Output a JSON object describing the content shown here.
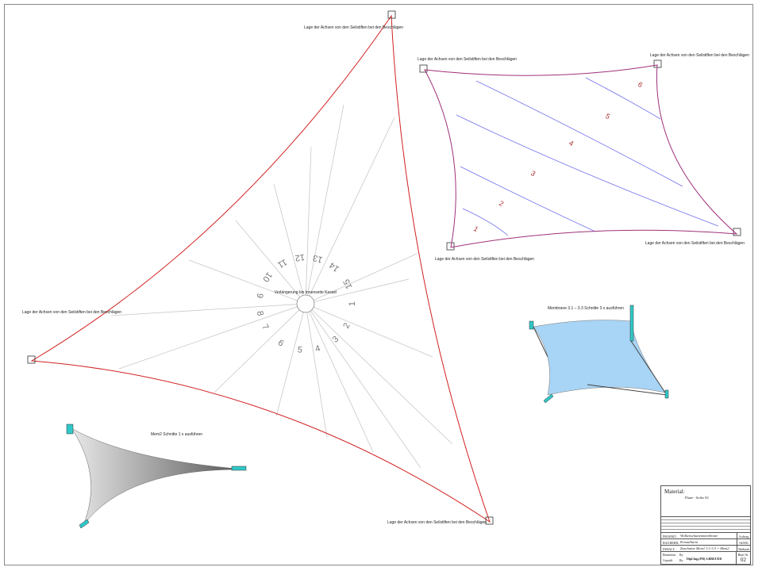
{
  "anchor_label": "Lage der Achsen von den Seilstiften bei den Beschlägen",
  "center_label": "Verlängerung bis Innenseite Kessel",
  "segments_main": [
    "1",
    "2",
    "3",
    "4",
    "5",
    "6",
    "7",
    "8",
    "9",
    "10",
    "11",
    "12",
    "13",
    "14",
    "15"
  ],
  "segments_quad": [
    "1",
    "2",
    "3",
    "4",
    "5",
    "6"
  ],
  "view_label_right": "Membrane 3.1 – 3.3 Schnitte 3 x ausführen",
  "view_label_left": "Mem2 Schnitte 1 x ausführen",
  "colors": {
    "edge_main": "#d22020",
    "edge_quad": "#a0307a",
    "cut_lines": "#7070ee",
    "rays": "#c8c8c8",
    "membrane": "#a8d4f5",
    "mast": "#30c8c8"
  },
  "title_block": {
    "material_label": "Material:",
    "material_value": "Plane - Soltis 92",
    "project_key": "PROJEKT:",
    "project_value": "Wolkenschattenmembrane",
    "client_key": "BAUHERR:",
    "client_value": "Kristallturm",
    "content_key": "INHALT:",
    "content_value": "Zuschnitte Mem1 3.1-3.3 + Mem2",
    "order_key": "Auftrag",
    "order_value": "04/836",
    "scale_key": "Maßstab",
    "drawn_key": "Bearbeitet",
    "drawn_value": "Ry",
    "checked_key": "Geprüft",
    "checked_value": "Ry",
    "company": "Dipl.Ing.(FH) S.BREUER",
    "sheet_key": "Blatt Nr.",
    "sheet_value": "02"
  }
}
